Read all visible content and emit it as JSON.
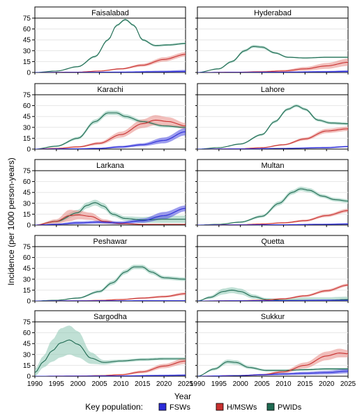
{
  "figure": {
    "ylabel": "Incidence (per 1000 person-years)",
    "xlabel": "Year",
    "legend_title": "Key population:",
    "legend": [
      {
        "name": "FSWs",
        "line": "#2b2bd9",
        "fill": "#4a4ae0"
      },
      {
        "name": "H/MSWs",
        "line": "#c8302f",
        "fill": "#e88a85"
      },
      {
        "name": "PWIDs",
        "line": "#1f6a52",
        "fill": "#8cc6b3"
      }
    ]
  },
  "chart_data": {
    "type": "line",
    "title": "",
    "xlabel": "Year",
    "ylabel": "Incidence (per 1000 person-years)",
    "xlim": [
      1990,
      2025
    ],
    "ylim": [
      0,
      75
    ],
    "xticks": [
      1990,
      1995,
      2000,
      2005,
      2010,
      2015,
      2020,
      2025
    ],
    "yticks": [
      0,
      15,
      30,
      45,
      60,
      75
    ],
    "legend_position": "bottom",
    "panels": [
      {
        "title": "Faisalabad",
        "series": [
          {
            "name": "FSWs",
            "x": [
              1990,
              2000,
              2010,
              2020,
              2025
            ],
            "y": [
              0,
              0.2,
              0.5,
              1,
              1.5
            ],
            "band": [
              0,
              0.3,
              0.8,
              1.5,
              2
            ]
          },
          {
            "name": "H/MSWs",
            "x": [
              1990,
              2000,
              2005,
              2010,
              2015,
              2020,
              2025
            ],
            "y": [
              0,
              0.5,
              2,
              5,
              10,
              18,
              25
            ],
            "band": [
              0,
              0.3,
              0.6,
              1,
              2,
              3,
              3
            ]
          },
          {
            "name": "PWIDs",
            "x": [
              1990,
              1995,
              2000,
              2004,
              2007,
              2009,
              2011,
              2013,
              2015,
              2018,
              2021,
              2025
            ],
            "y": [
              0,
              2,
              8,
              22,
              45,
              65,
              73,
              65,
              45,
              37,
              38,
              40
            ],
            "band": [
              0,
              0.5,
              1,
              1.5,
              1.5,
              1.5,
              1.5,
              1.5,
              1.5,
              1.5,
              1.5,
              1.5
            ]
          }
        ]
      },
      {
        "title": "Hyderabad",
        "series": [
          {
            "name": "FSWs",
            "x": [
              1990,
              2000,
              2010,
              2020,
              2025
            ],
            "y": [
              0,
              0.2,
              0.5,
              1,
              1.5
            ],
            "band": [
              0,
              0.3,
              0.5,
              1,
              1.5
            ]
          },
          {
            "name": "H/MSWs",
            "x": [
              1990,
              2000,
              2005,
              2010,
              2015,
              2020,
              2025
            ],
            "y": [
              0,
              0.5,
              1,
              2,
              5,
              9,
              14
            ],
            "band": [
              0,
              0.5,
              1,
              1.5,
              2.5,
              4,
              5
            ]
          },
          {
            "name": "PWIDs",
            "x": [
              1990,
              1995,
              1998,
              2001,
              2003,
              2005,
              2008,
              2011,
              2015,
              2020,
              2025
            ],
            "y": [
              0,
              5,
              15,
              30,
              36,
              35,
              27,
              21,
              20,
              21,
              21
            ],
            "band": [
              0,
              1,
              1.5,
              2,
              2,
              2,
              1.5,
              1,
              1,
              1,
              1
            ]
          }
        ]
      },
      {
        "title": "Karachi",
        "series": [
          {
            "name": "FSWs",
            "x": [
              1990,
              2000,
              2005,
              2010,
              2015,
              2020,
              2025
            ],
            "y": [
              0,
              0.5,
              1,
              3,
              6,
              12,
              24
            ],
            "band": [
              0,
              0.5,
              0.8,
              1.5,
              2,
              4,
              5
            ]
          },
          {
            "name": "H/MSWs",
            "x": [
              1990,
              1995,
              2000,
              2005,
              2010,
              2015,
              2018,
              2021,
              2025
            ],
            "y": [
              0,
              1,
              3,
              8,
              20,
              35,
              40,
              38,
              32
            ],
            "band": [
              0,
              0.5,
              1,
              2,
              4,
              6,
              7,
              6,
              4
            ]
          },
          {
            "name": "PWIDs",
            "x": [
              1990,
              1995,
              2000,
              2004,
              2007,
              2009,
              2011,
              2015,
              2020,
              2025
            ],
            "y": [
              0,
              4,
              15,
              38,
              50,
              50,
              45,
              38,
              32,
              30
            ],
            "band": [
              0,
              1,
              2,
              3,
              3,
              3,
              3,
              2.5,
              2,
              2
            ]
          }
        ]
      },
      {
        "title": "Lahore",
        "series": [
          {
            "name": "FSWs",
            "x": [
              1990,
              2000,
              2010,
              2020,
              2025
            ],
            "y": [
              0,
              0.3,
              1,
              2,
              3.5
            ],
            "band": [
              0,
              0.3,
              0.5,
              1,
              1
            ]
          },
          {
            "name": "H/MSWs",
            "x": [
              1990,
              2000,
              2005,
              2010,
              2015,
              2020,
              2025
            ],
            "y": [
              0,
              0.5,
              2,
              6,
              14,
              25,
              28
            ],
            "band": [
              0,
              0.3,
              0.6,
              1,
              2,
              3,
              3
            ]
          },
          {
            "name": "PWIDs",
            "x": [
              1990,
              1995,
              2000,
              2005,
              2008,
              2011,
              2013,
              2015,
              2018,
              2021,
              2025
            ],
            "y": [
              0,
              2,
              7,
              20,
              38,
              55,
              60,
              55,
              40,
              36,
              35
            ],
            "band": [
              0,
              0.5,
              1,
              1.5,
              2,
              2,
              2,
              2,
              2,
              2,
              2
            ]
          }
        ]
      },
      {
        "title": "Larkana",
        "series": [
          {
            "name": "FSWs",
            "x": [
              1990,
              1995,
              2000,
              2005,
              2010,
              2015,
              2020,
              2025
            ],
            "y": [
              0,
              1,
              3,
              4,
              3,
              6,
              13,
              23
            ],
            "band": [
              0,
              1,
              2,
              2,
              2,
              3,
              5,
              4
            ]
          },
          {
            "name": "H/MSWs",
            "x": [
              1990,
              1995,
              1998,
              2000,
              2003,
              2006,
              2010,
              2015,
              2020,
              2025
            ],
            "y": [
              0,
              5,
              13,
              14,
              12,
              5,
              2,
              1,
              1,
              1
            ],
            "band": [
              0,
              3,
              8,
              6,
              5,
              3,
              1,
              0.5,
              0.5,
              0.5
            ]
          },
          {
            "name": "PWIDs",
            "x": [
              1990,
              1995,
              2000,
              2002,
              2004,
              2006,
              2008,
              2011,
              2015,
              2020,
              2025
            ],
            "y": [
              0,
              5,
              17,
              27,
              31,
              26,
              15,
              9,
              7,
              8,
              8
            ],
            "band": [
              0,
              2,
              4,
              4,
              4,
              4,
              3,
              3,
              4,
              5,
              5
            ]
          }
        ]
      },
      {
        "title": "Multan",
        "series": [
          {
            "name": "FSWs",
            "x": [
              1990,
              2000,
              2010,
              2020,
              2025
            ],
            "y": [
              0,
              0.2,
              0.5,
              1,
              1.5
            ],
            "band": [
              0,
              0.3,
              0.5,
              0.8,
              1
            ]
          },
          {
            "name": "H/MSWs",
            "x": [
              1990,
              2000,
              2005,
              2010,
              2015,
              2020,
              2025
            ],
            "y": [
              0,
              0.5,
              1.5,
              3,
              6,
              13,
              20
            ],
            "band": [
              0,
              0.3,
              0.5,
              1,
              1.5,
              2,
              2.5
            ]
          },
          {
            "name": "PWIDs",
            "x": [
              1990,
              1995,
              2000,
              2005,
              2009,
              2012,
              2014,
              2016,
              2019,
              2022,
              2025
            ],
            "y": [
              0,
              1,
              4,
              12,
              30,
              45,
              50,
              48,
              40,
              35,
              33
            ],
            "band": [
              0,
              0.5,
              1,
              2,
              3,
              3,
              3,
              3,
              2.5,
              2.5,
              2.5
            ]
          }
        ]
      },
      {
        "title": "Peshawar",
        "series": [
          {
            "name": "FSWs",
            "x": [
              1990,
              2000,
              2010,
              2020,
              2025
            ],
            "y": [
              0,
              0.2,
              0.3,
              0.5,
              0.5
            ],
            "band": [
              0,
              0.2,
              0.3,
              0.5,
              0.5
            ]
          },
          {
            "name": "H/MSWs",
            "x": [
              1990,
              2000,
              2005,
              2010,
              2015,
              2020,
              2025
            ],
            "y": [
              0,
              0.3,
              0.8,
              2,
              4,
              6,
              10
            ],
            "band": [
              0,
              0.3,
              0.5,
              0.8,
              1,
              1.5,
              2
            ]
          },
          {
            "name": "PWIDs",
            "x": [
              1990,
              1995,
              2000,
              2005,
              2008,
              2011,
              2013,
              2015,
              2017,
              2020,
              2025
            ],
            "y": [
              0,
              1,
              4,
              13,
              25,
              40,
              47,
              47,
              40,
              32,
              30
            ],
            "band": [
              0,
              0.5,
              1,
              2,
              3,
              3,
              3,
              3,
              3,
              2.5,
              2.5
            ]
          }
        ]
      },
      {
        "title": "Quetta",
        "series": [
          {
            "name": "FSWs",
            "x": [
              1990,
              2000,
              2010,
              2020,
              2025
            ],
            "y": [
              0,
              0.3,
              0.5,
              1,
              1
            ],
            "band": [
              0,
              0.3,
              0.5,
              1,
              1
            ]
          },
          {
            "name": "H/MSWs",
            "x": [
              1990,
              2000,
              2005,
              2010,
              2015,
              2020,
              2025
            ],
            "y": [
              0,
              0.5,
              1,
              3,
              7,
              14,
              22
            ],
            "band": [
              0,
              0.3,
              0.5,
              1,
              1.5,
              2,
              2
            ]
          },
          {
            "name": "PWIDs",
            "x": [
              1990,
              1993,
              1996,
              1998,
              2000,
              2003,
              2006,
              2010,
              2015,
              2020,
              2025
            ],
            "y": [
              0,
              5,
              13,
              15,
              13,
              6,
              2,
              1,
              1,
              1,
              2
            ],
            "band": [
              0,
              2,
              4,
              4,
              4,
              3,
              2,
              2,
              4,
              4,
              4
            ]
          }
        ]
      },
      {
        "title": "Sargodha",
        "series": [
          {
            "name": "FSWs",
            "x": [
              1990,
              2000,
              2010,
              2020,
              2025
            ],
            "y": [
              0,
              0.2,
              0.5,
              1,
              1.5
            ],
            "band": [
              0,
              0.3,
              0.5,
              1,
              1
            ]
          },
          {
            "name": "H/MSWs",
            "x": [
              1990,
              2000,
              2005,
              2010,
              2015,
              2020,
              2025
            ],
            "y": [
              0,
              0.3,
              0.8,
              2,
              6,
              14,
              21
            ],
            "band": [
              0,
              0.3,
              0.5,
              1,
              2,
              3,
              4
            ]
          },
          {
            "name": "PWIDs",
            "x": [
              1990,
              1992,
              1994,
              1996,
              1998,
              2000,
              2003,
              2006,
              2010,
              2015,
              2020,
              2025
            ],
            "y": [
              5,
              20,
              35,
              46,
              50,
              44,
              25,
              19,
              21,
              23,
              24,
              24
            ],
            "band": [
              5,
              8,
              15,
              20,
              20,
              18,
              8,
              3,
              2,
              2,
              2,
              2
            ]
          }
        ]
      },
      {
        "title": "Sukkur",
        "series": [
          {
            "name": "FSWs",
            "x": [
              1990,
              2000,
              2005,
              2010,
              2015,
              2020,
              2025
            ],
            "y": [
              0,
              1,
              2,
              3,
              4,
              5,
              7
            ],
            "band": [
              0,
              0.5,
              1,
              1.5,
              2,
              2.5,
              3
            ]
          },
          {
            "name": "H/MSWs",
            "x": [
              1990,
              2000,
              2005,
              2010,
              2015,
              2020,
              2023,
              2025
            ],
            "y": [
              0,
              1,
              2,
              6,
              15,
              28,
              32,
              31
            ],
            "band": [
              0,
              0.5,
              1,
              2,
              4,
              6,
              6,
              5
            ]
          },
          {
            "name": "PWIDs",
            "x": [
              1990,
              1994,
              1997,
              1999,
              2002,
              2006,
              2010,
              2015,
              2020,
              2025
            ],
            "y": [
              0,
              10,
              20,
              19,
              12,
              8,
              8,
              9,
              10,
              10
            ],
            "band": [
              0,
              2,
              3,
              3,
              2,
              1.5,
              1.5,
              1.5,
              1.5,
              1.5
            ]
          }
        ]
      }
    ]
  }
}
